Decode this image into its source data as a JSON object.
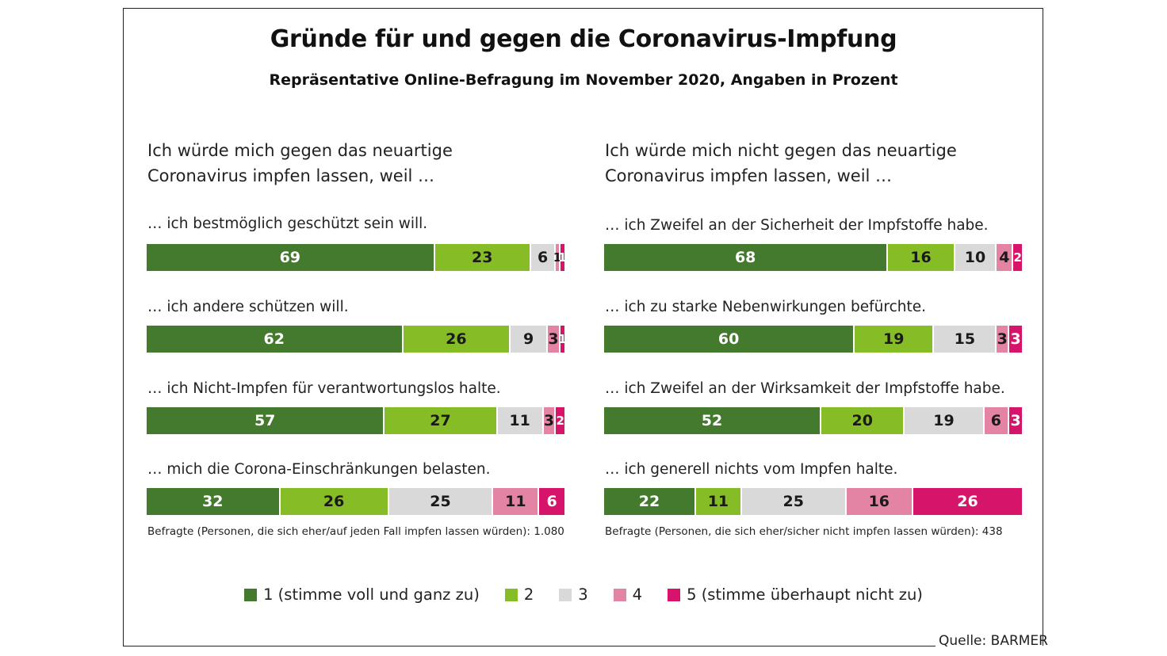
{
  "chart_data": {
    "type": "bar",
    "orientation": "horizontal-stacked-100",
    "title": "Gründe für und gegen die Coronavirus-Impfung",
    "subtitle": "Repräsentative Online-Befragung im November 2020, Angaben in Prozent",
    "colors": [
      "#447a2e",
      "#86bc25",
      "#d9d9d9",
      "#e384a4",
      "#d6156a"
    ],
    "legend": [
      "1 (stimme voll und ganz zu)",
      "2",
      "3",
      "4",
      "5 (stimme überhaupt nicht zu)"
    ],
    "legend_position": "bottom",
    "panels": [
      {
        "heading_line1": "Ich würde mich gegen das neuartige",
        "heading_line2": "Coronavirus impfen lassen, weil …",
        "categories": [
          "… ich bestmöglich geschützt sein will.",
          "… ich andere schützen will.",
          "… ich Nicht-Impfen für verantwortungslos halte.",
          "… mich die Corona-Einschränkungen belasten."
        ],
        "series": [
          {
            "name": "1",
            "values": [
              69,
              62,
              57,
              32
            ]
          },
          {
            "name": "2",
            "values": [
              23,
              26,
              27,
              26
            ]
          },
          {
            "name": "3",
            "values": [
              6,
              9,
              11,
              25
            ]
          },
          {
            "name": "4",
            "values": [
              1,
              3,
              3,
              11
            ]
          },
          {
            "name": "5",
            "values": [
              1,
              1,
              2,
              6
            ]
          }
        ],
        "note": "Befragte (Personen, die sich eher/auf jeden Fall impfen lassen würden): 1.080"
      },
      {
        "heading_line1": "Ich würde mich nicht gegen das neuartige",
        "heading_line2": "Coronavirus impfen lassen, weil …",
        "categories": [
          "… ich Zweifel an der Sicherheit der Impfstoffe habe.",
          "…  ich zu starke Nebenwirkungen befürchte.",
          "… ich Zweifel an der Wirksamkeit der Impfstoffe habe.",
          "… ich generell nichts vom Impfen halte."
        ],
        "series": [
          {
            "name": "1",
            "values": [
              68,
              60,
              52,
              22
            ]
          },
          {
            "name": "2",
            "values": [
              16,
              19,
              20,
              11
            ]
          },
          {
            "name": "3",
            "values": [
              10,
              15,
              19,
              25
            ]
          },
          {
            "name": "4",
            "values": [
              4,
              3,
              6,
              16
            ]
          },
          {
            "name": "5",
            "values": [
              2,
              3,
              3,
              26
            ]
          }
        ],
        "note": "Befragte (Personen, die sich eher/sicher nicht impfen lassen würden): 438"
      }
    ],
    "source": "Quelle: BARMER"
  }
}
